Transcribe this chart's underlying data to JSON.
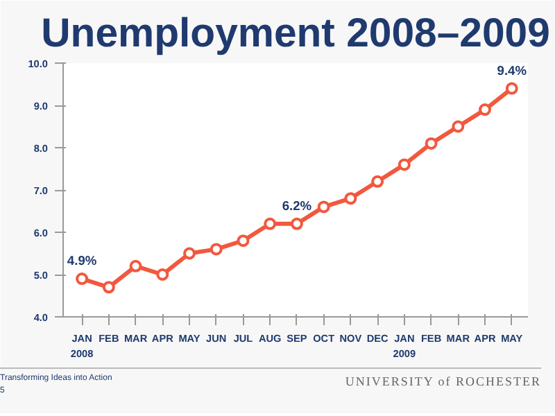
{
  "chart_data": {
    "type": "line",
    "title": "Unemployment 2008–2009",
    "categories": [
      "JAN\n2008",
      "FEB",
      "MAR",
      "APR",
      "MAY",
      "JUN",
      "JUL",
      "AUG",
      "SEP",
      "OCT",
      "NOV",
      "DEC",
      "JAN\n2009",
      "FEB",
      "MAR",
      "APR",
      "MAY"
    ],
    "series": [
      {
        "color": "#f2583e",
        "values": [
          4.9,
          4.7,
          5.2,
          5.0,
          5.5,
          5.6,
          5.8,
          6.2,
          6.2,
          6.6,
          6.8,
          7.2,
          7.6,
          8.1,
          8.5,
          8.9,
          9.4
        ],
        "value_labels": [
          "4.9%",
          null,
          null,
          null,
          null,
          null,
          null,
          null,
          "6.2%",
          null,
          null,
          null,
          null,
          null,
          null,
          null,
          "9.4%"
        ]
      }
    ],
    "ylim": [
      4.0,
      10.0
    ],
    "yticks": [
      {
        "value": 4,
        "label": "4.0"
      },
      {
        "value": 5,
        "label": "5.0"
      },
      {
        "value": 6,
        "label": "6.0"
      },
      {
        "value": 7,
        "label": "7.0"
      },
      {
        "value": 8,
        "label": "8.0"
      },
      {
        "value": 9,
        "label": "9.0"
      },
      {
        "value": 10,
        "label": "10.0"
      }
    ],
    "grid": false,
    "marker": "circle",
    "line_style": "solid",
    "annotations": [
      "Transforming Ideas into Action",
      "5",
      "UNIVERSITY of ROCHESTER"
    ]
  }
}
